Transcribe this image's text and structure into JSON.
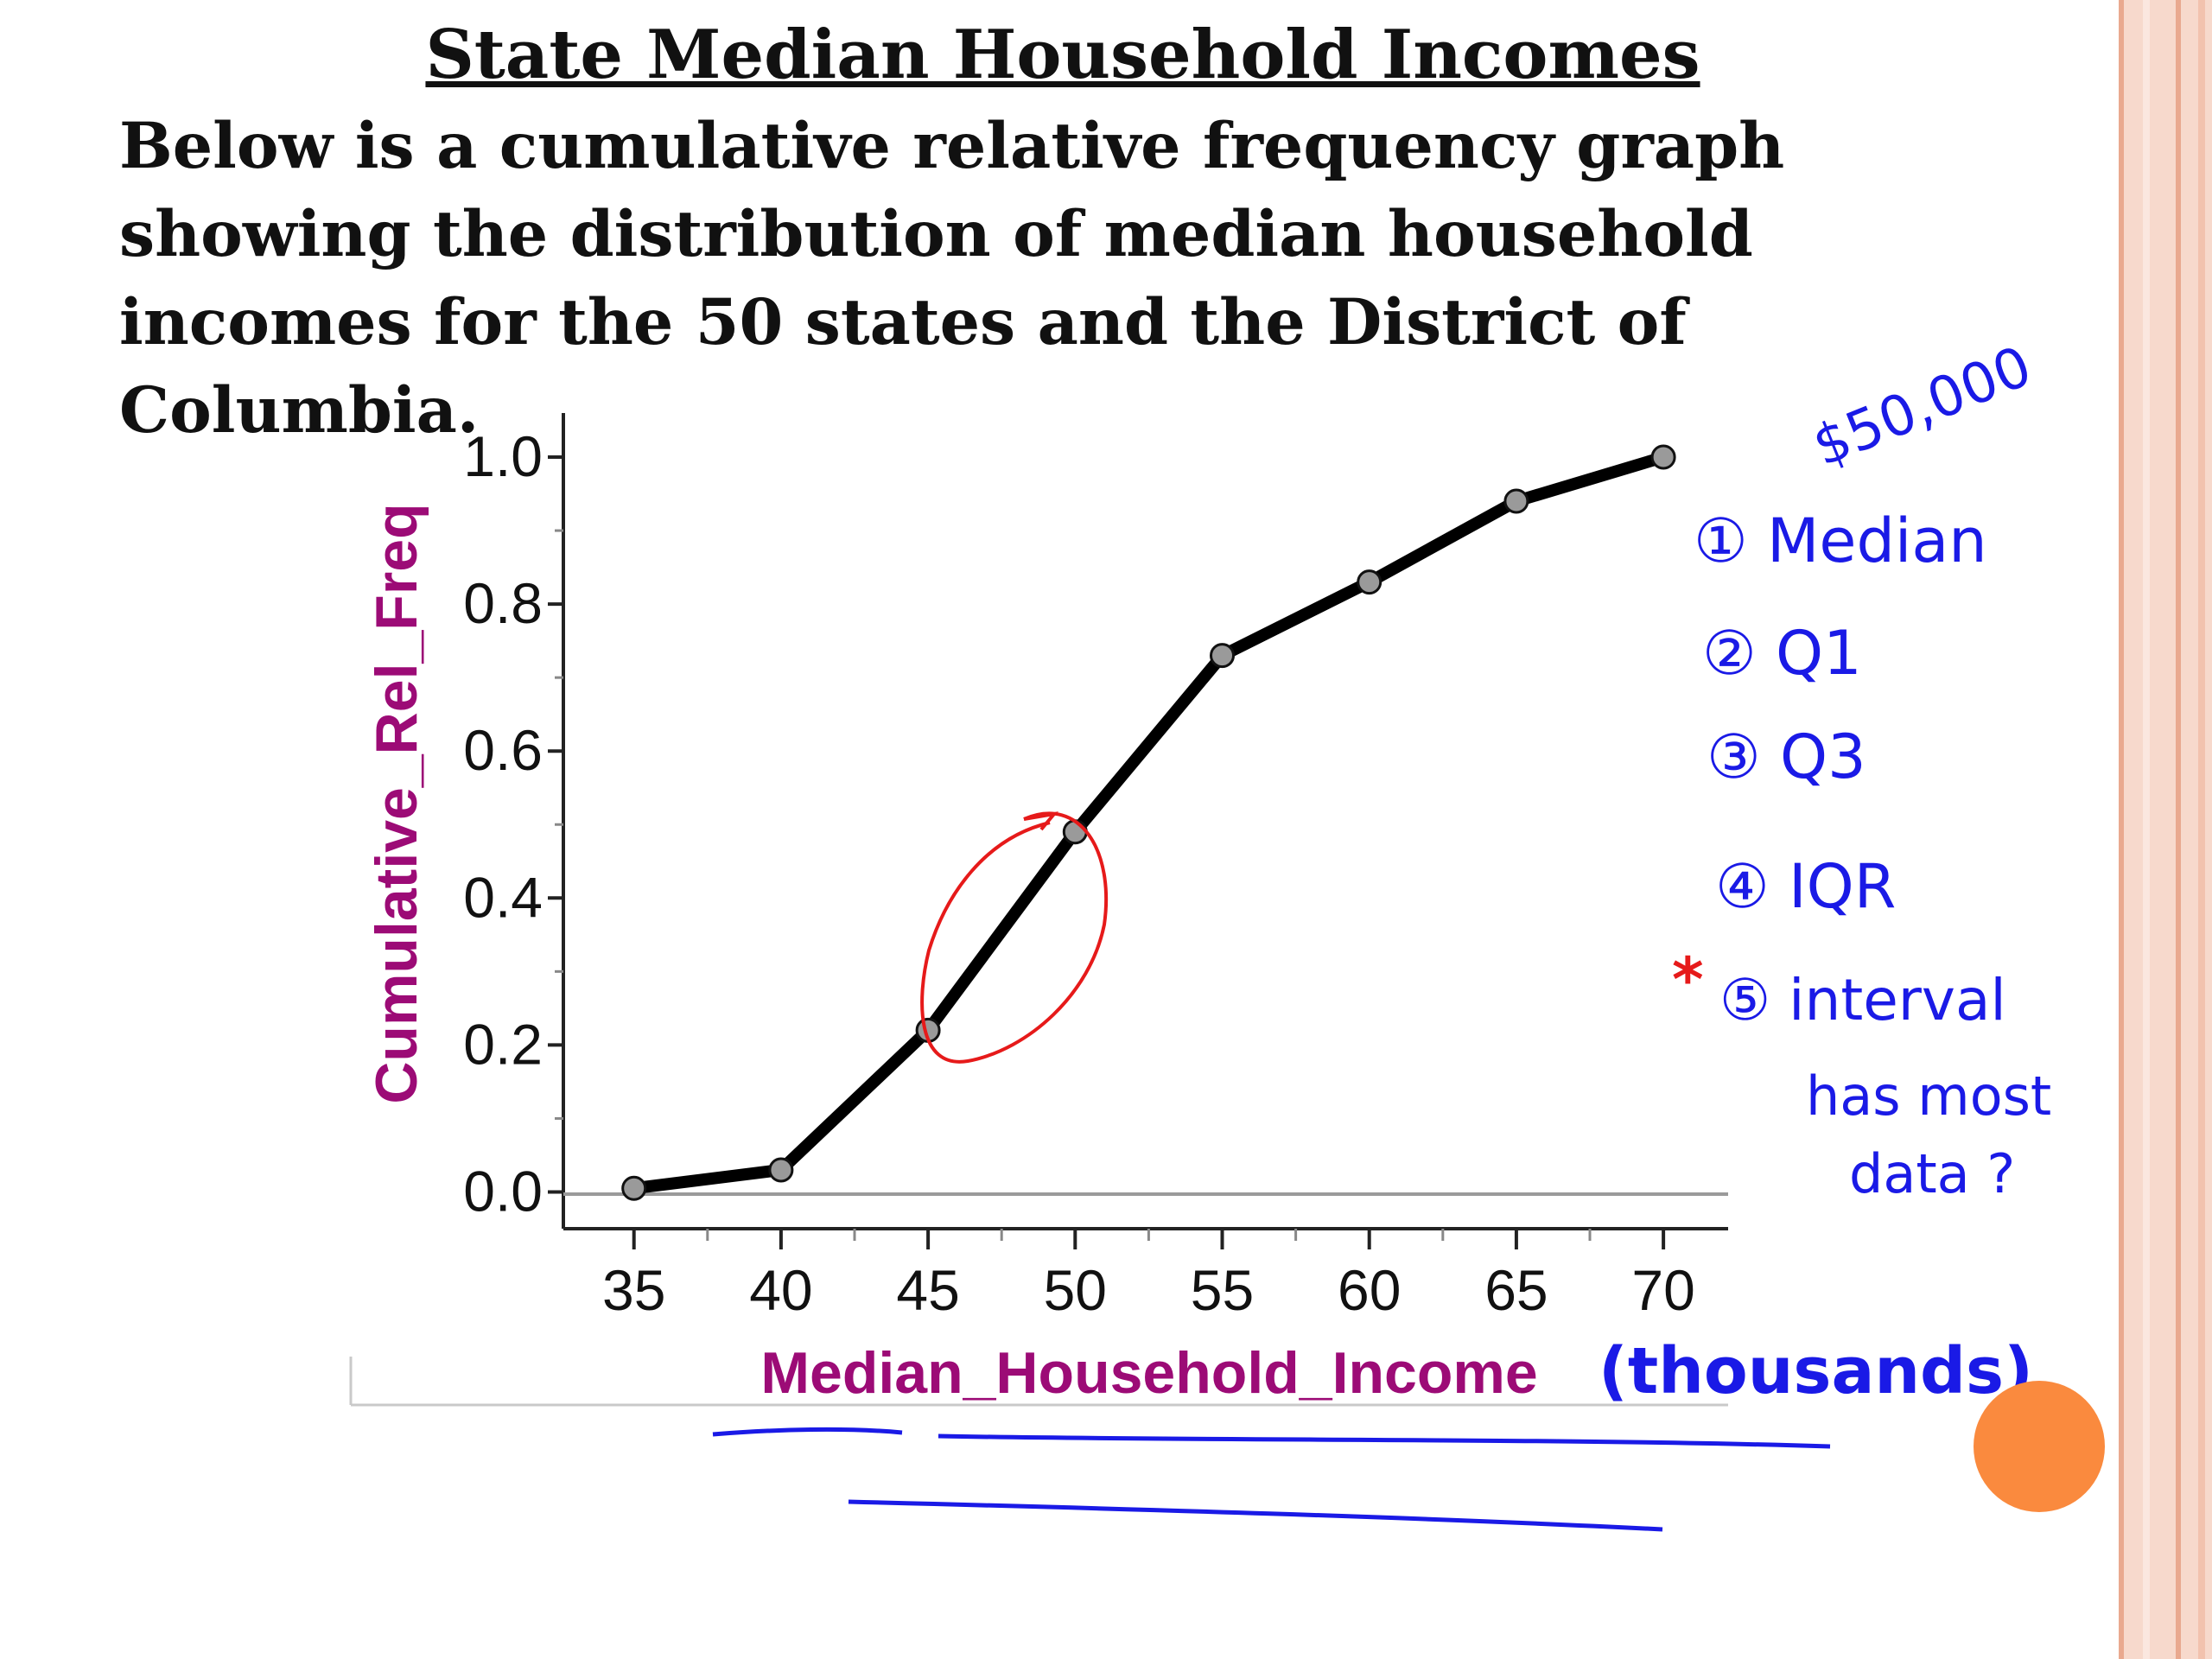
{
  "slide": {
    "title": "State Median Household Incomes",
    "paragraph": "Below is a cumulative relative frequency graph showing the distribution of median household incomes for the 50 states and the District of Columbia."
  },
  "chart_data": {
    "type": "line",
    "xlabel": "Median_Household_Income",
    "ylabel": "Cumulative_Rel_Freq",
    "x": [
      35,
      40,
      45,
      50,
      55,
      60,
      65,
      70
    ],
    "y": [
      0.005,
      0.03,
      0.22,
      0.49,
      0.73,
      0.83,
      0.94,
      1.0
    ],
    "xlim": [
      32.6,
      72.2
    ],
    "ylim": [
      -0.05,
      1.06
    ],
    "x_ticks": [
      35,
      40,
      45,
      50,
      55,
      60,
      65,
      70
    ],
    "y_ticks": [
      0.0,
      0.2,
      0.4,
      0.6,
      0.8,
      1.0
    ],
    "x_tick_labels": [
      "35",
      "40",
      "45",
      "50",
      "55",
      "60",
      "65",
      "70"
    ],
    "y_tick_labels": [
      "0.0",
      "0.2",
      "0.4",
      "0.6",
      "0.8",
      "1.0"
    ],
    "line_color": "#000000",
    "marker_color": "#9a9a9a",
    "axis_title_color": "#9c0b76",
    "grid": false
  },
  "annotations": {
    "money": "$50,000",
    "items": [
      "① Median",
      "② Q1",
      "③ Q3",
      "④ IQR",
      "⑤ interval",
      "has most",
      "data ?"
    ],
    "star": "*",
    "thousands": "(thousands)",
    "ink_blue": "#1a1ae6",
    "ink_red": "#e61a1a"
  },
  "theme": {
    "frame_color": "#f7d9cc",
    "accent_dot": "#fa8a3e"
  }
}
